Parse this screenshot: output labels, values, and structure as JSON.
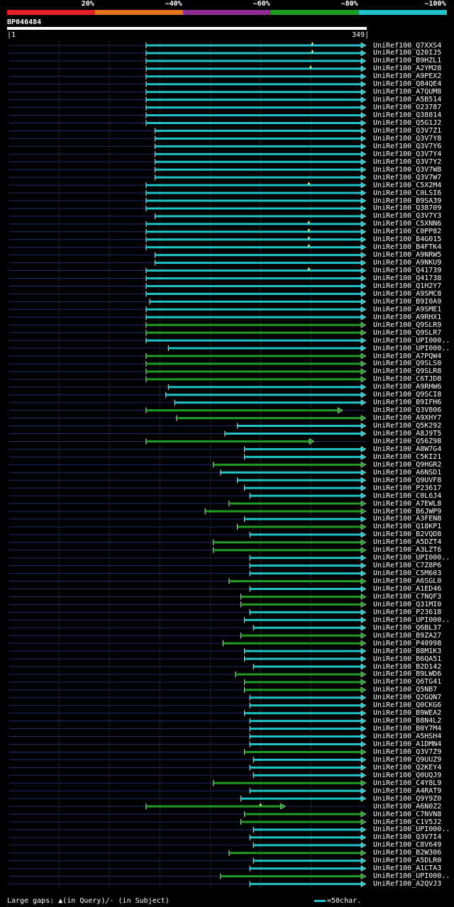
{
  "legend": {
    "percent_labels": [
      "20%",
      "~40%",
      "~60%",
      "~80%",
      "~100%"
    ],
    "colors": [
      "#e8222a",
      "#e8741e",
      "#8e2c92",
      "#1f9c22",
      "#1fc3c9"
    ]
  },
  "query": {
    "id": "BP046484",
    "start": "1",
    "end": "349"
  },
  "colors": {
    "cyan": "#1fc3c9",
    "green": "#1f9c22",
    "background": "#000000",
    "grid": "#5a5a5a",
    "gap_line": "#1e2a6e",
    "marker": "#ffff80"
  },
  "hits": [
    {
      "label": "UniRef100_Q7XXS4",
      "start": 0.385,
      "color": "cyan",
      "arrow": "right",
      "marker": 0.85
    },
    {
      "label": "UniRef100_Q20IJ5",
      "start": 0.385,
      "color": "cyan",
      "arrow": "right",
      "marker": 0.85
    },
    {
      "label": "UniRef100_B9HZL1",
      "start": 0.385,
      "color": "cyan",
      "arrow": "right",
      "marker": null
    },
    {
      "label": "UniRef100_A2YM28",
      "start": 0.385,
      "color": "cyan",
      "arrow": "right",
      "marker": 0.845
    },
    {
      "label": "UniRef100_A9PEX2",
      "start": 0.385,
      "color": "cyan",
      "arrow": "right",
      "marker": null
    },
    {
      "label": "UniRef100_Q84QE4",
      "start": 0.385,
      "color": "cyan",
      "arrow": "right",
      "marker": null
    },
    {
      "label": "UniRef100_A7QUM8",
      "start": 0.385,
      "color": "cyan",
      "arrow": "right",
      "marker": null
    },
    {
      "label": "UniRef100_A5B514",
      "start": 0.385,
      "color": "cyan",
      "arrow": "right",
      "marker": null
    },
    {
      "label": "UniRef100_O23787",
      "start": 0.385,
      "color": "cyan",
      "arrow": "right",
      "marker": null
    },
    {
      "label": "UniRef100_Q38814",
      "start": 0.385,
      "color": "cyan",
      "arrow": "right",
      "marker": null
    },
    {
      "label": "UniRef100_Q5G1J2",
      "start": 0.385,
      "color": "cyan",
      "arrow": "right",
      "marker": null
    },
    {
      "label": "UniRef100_Q3V7Z1",
      "start": 0.41,
      "color": "cyan",
      "arrow": "right",
      "marker": null
    },
    {
      "label": "UniRef100_Q3V7Y8",
      "start": 0.41,
      "color": "cyan",
      "arrow": "right",
      "marker": null
    },
    {
      "label": "UniRef100_Q3V7Y6",
      "start": 0.41,
      "color": "cyan",
      "arrow": "right",
      "marker": null
    },
    {
      "label": "UniRef100_Q3V7Y4",
      "start": 0.41,
      "color": "cyan",
      "arrow": "right",
      "marker": null
    },
    {
      "label": "UniRef100_Q3V7Y2",
      "start": 0.41,
      "color": "cyan",
      "arrow": "right",
      "marker": null
    },
    {
      "label": "UniRef100_Q3V7W8",
      "start": 0.41,
      "color": "cyan",
      "arrow": "right",
      "marker": null
    },
    {
      "label": "UniRef100_Q3V7W7",
      "start": 0.41,
      "color": "cyan",
      "arrow": "right",
      "marker": null
    },
    {
      "label": "UniRef100_C5X2M4",
      "start": 0.385,
      "color": "cyan",
      "arrow": "right",
      "marker": 0.84
    },
    {
      "label": "UniRef100_C0LSI6",
      "start": 0.385,
      "color": "cyan",
      "arrow": "right",
      "marker": null
    },
    {
      "label": "UniRef100_B9SA39",
      "start": 0.385,
      "color": "cyan",
      "arrow": "right",
      "marker": null
    },
    {
      "label": "UniRef100_Q38709",
      "start": 0.385,
      "color": "cyan",
      "arrow": "right",
      "marker": null
    },
    {
      "label": "UniRef100_Q3V7Y3",
      "start": 0.41,
      "color": "cyan",
      "arrow": "right",
      "marker": null
    },
    {
      "label": "UniRef100_C5XNN6",
      "start": 0.385,
      "color": "cyan",
      "arrow": "right",
      "marker": 0.84
    },
    {
      "label": "UniRef100_C0PP82",
      "start": 0.385,
      "color": "cyan",
      "arrow": "right",
      "marker": 0.84
    },
    {
      "label": "UniRef100_B4G015",
      "start": 0.385,
      "color": "cyan",
      "arrow": "right",
      "marker": 0.84
    },
    {
      "label": "UniRef100_B4FTK4",
      "start": 0.385,
      "color": "cyan",
      "arrow": "right",
      "marker": 0.84
    },
    {
      "label": "UniRef100_A9NRW5",
      "start": 0.41,
      "color": "cyan",
      "arrow": "right",
      "marker": null
    },
    {
      "label": "UniRef100_A9NKU9",
      "start": 0.41,
      "color": "cyan",
      "arrow": "right",
      "marker": null
    },
    {
      "label": "UniRef100_Q41739",
      "start": 0.385,
      "color": "cyan",
      "arrow": "right",
      "marker": 0.84
    },
    {
      "label": "UniRef100_Q41738",
      "start": 0.385,
      "color": "cyan",
      "arrow": "right",
      "marker": null
    },
    {
      "label": "UniRef100_Q1H2Y7",
      "start": 0.385,
      "color": "cyan",
      "arrow": "right",
      "marker": null
    },
    {
      "label": "UniRef100_A9SMC8",
      "start": 0.385,
      "color": "cyan",
      "arrow": "right",
      "marker": null
    },
    {
      "label": "UniRef100_B9I0A9",
      "start": 0.395,
      "color": "cyan",
      "arrow": "right",
      "marker": null
    },
    {
      "label": "UniRef100_A9SME1",
      "start": 0.385,
      "color": "cyan",
      "arrow": "right",
      "marker": null
    },
    {
      "label": "UniRef100_A9RHX1",
      "start": 0.385,
      "color": "cyan",
      "arrow": "right",
      "marker": null
    },
    {
      "label": "UniRef100_Q9SLR9",
      "start": 0.385,
      "color": "green",
      "arrow": "right",
      "marker": null
    },
    {
      "label": "UniRef100_Q9SLR7",
      "start": 0.385,
      "color": "green",
      "arrow": "right",
      "marker": null
    },
    {
      "label": "UniRef100_UPI000..",
      "start": 0.385,
      "color": "cyan",
      "arrow": "right",
      "marker": null
    },
    {
      "label": "UniRef100_UPI000..",
      "start": 0.447,
      "color": "cyan",
      "arrow": "right",
      "marker": null
    },
    {
      "label": "UniRef100_A7PQW4",
      "start": 0.385,
      "color": "green",
      "arrow": "right",
      "marker": null
    },
    {
      "label": "UniRef100_Q9SLS0",
      "start": 0.385,
      "color": "green",
      "arrow": "right",
      "marker": null
    },
    {
      "label": "UniRef100_Q9SLR8",
      "start": 0.385,
      "color": "green",
      "arrow": "right",
      "marker": null
    },
    {
      "label": "UniRef100_C6TJD8",
      "start": 0.385,
      "color": "green",
      "arrow": "right",
      "marker": null
    },
    {
      "label": "UniRef100_A9RHW6",
      "start": 0.447,
      "color": "cyan",
      "arrow": "right",
      "marker": null
    },
    {
      "label": "UniRef100_Q9SCI8",
      "start": 0.44,
      "color": "cyan",
      "arrow": "right",
      "marker": null
    },
    {
      "label": "UniRef100_B9IFH6",
      "start": 0.465,
      "color": "cyan",
      "arrow": "right",
      "marker": null
    },
    {
      "label": "UniRef100_Q3V806",
      "start": 0.385,
      "color": "green",
      "arrow": "mid-0.935",
      "marker": null
    },
    {
      "label": "UniRef100_A9XHY7",
      "start": 0.47,
      "color": "green",
      "arrow": "right",
      "marker": null
    },
    {
      "label": "UniRef100_Q5K292",
      "start": 0.64,
      "color": "cyan",
      "arrow": "right",
      "marker": null
    },
    {
      "label": "UniRef100_A8J9T5",
      "start": 0.605,
      "color": "cyan",
      "arrow": "right",
      "marker": null
    },
    {
      "label": "UniRef100_Q56Z98",
      "start": 0.385,
      "color": "green",
      "arrow": "mid-0.855",
      "marker": null
    },
    {
      "label": "UniRef100_A8W7G4",
      "start": 0.66,
      "color": "cyan",
      "arrow": "right",
      "marker": null
    },
    {
      "label": "UniRef100_C5KI21",
      "start": 0.66,
      "color": "cyan",
      "arrow": "right",
      "marker": null
    },
    {
      "label": "UniRef100_Q9HGR2",
      "start": 0.573,
      "color": "green",
      "arrow": "right",
      "marker": null
    },
    {
      "label": "UniRef100_A6NSD1",
      "start": 0.593,
      "color": "cyan",
      "arrow": "right",
      "marker": null
    },
    {
      "label": "UniRef100_Q9UVF8",
      "start": 0.64,
      "color": "cyan",
      "arrow": "right",
      "marker": null
    },
    {
      "label": "UniRef100_P23617",
      "start": 0.66,
      "color": "cyan",
      "arrow": "right",
      "marker": null
    },
    {
      "label": "UniRef100_C0L6J4",
      "start": 0.675,
      "color": "cyan",
      "arrow": "right",
      "marker": null
    },
    {
      "label": "UniRef100_A7EWL8",
      "start": 0.617,
      "color": "green",
      "arrow": "right",
      "marker": null
    },
    {
      "label": "UniRef100_B6JWP9",
      "start": 0.55,
      "color": "green",
      "arrow": "right",
      "marker": null
    },
    {
      "label": "UniRef100_A3FEN8",
      "start": 0.66,
      "color": "cyan",
      "arrow": "right",
      "marker": null
    },
    {
      "label": "UniRef100_Q18KP1",
      "start": 0.64,
      "color": "green",
      "arrow": "right",
      "marker": null
    },
    {
      "label": "UniRef100_B2VQD8",
      "start": 0.675,
      "color": "cyan",
      "arrow": "right",
      "marker": null
    },
    {
      "label": "UniRef100_A5DZT4",
      "start": 0.573,
      "color": "green",
      "arrow": "right",
      "marker": null
    },
    {
      "label": "UniRef100_A3LZT6",
      "start": 0.573,
      "color": "green",
      "arrow": "right",
      "marker": null
    },
    {
      "label": "UniRef100_UPI000..",
      "start": 0.675,
      "color": "cyan",
      "arrow": "right",
      "marker": null
    },
    {
      "label": "UniRef100_C7Z8P6",
      "start": 0.675,
      "color": "cyan",
      "arrow": "right",
      "marker": null
    },
    {
      "label": "UniRef100_C5M603",
      "start": 0.675,
      "color": "cyan",
      "arrow": "right",
      "marker": null
    },
    {
      "label": "UniRef100_A6SGL0",
      "start": 0.617,
      "color": "green",
      "arrow": "right",
      "marker": null
    },
    {
      "label": "UniRef100_A1ED46",
      "start": 0.675,
      "color": "cyan",
      "arrow": "right",
      "marker": null
    },
    {
      "label": "UniRef100_C7NQF3",
      "start": 0.65,
      "color": "green",
      "arrow": "right",
      "marker": null
    },
    {
      "label": "UniRef100_Q31MI0",
      "start": 0.65,
      "color": "green",
      "arrow": "right",
      "marker": null
    },
    {
      "label": "UniRef100_P23618",
      "start": 0.675,
      "color": "cyan",
      "arrow": "right",
      "marker": null
    },
    {
      "label": "UniRef100_UPI000..",
      "start": 0.66,
      "color": "cyan",
      "arrow": "right",
      "marker": null
    },
    {
      "label": "UniRef100_Q6BL37",
      "start": 0.685,
      "color": "cyan",
      "arrow": "right",
      "marker": null
    },
    {
      "label": "UniRef100_B9ZA27",
      "start": 0.65,
      "color": "green",
      "arrow": "right",
      "marker": null
    },
    {
      "label": "UniRef100_P40998",
      "start": 0.6,
      "color": "green",
      "arrow": "right",
      "marker": null
    },
    {
      "label": "UniRef100_B8M1K3",
      "start": 0.66,
      "color": "cyan",
      "arrow": "right",
      "marker": null
    },
    {
      "label": "UniRef100_B6QA51",
      "start": 0.66,
      "color": "cyan",
      "arrow": "right",
      "marker": null
    },
    {
      "label": "UniRef100_B2D142",
      "start": 0.685,
      "color": "cyan",
      "arrow": "right",
      "marker": null
    },
    {
      "label": "UniRef100_B9LWD6",
      "start": 0.635,
      "color": "green",
      "arrow": "right",
      "marker": null
    },
    {
      "label": "UniRef100_Q6TG41",
      "start": 0.66,
      "color": "green",
      "arrow": "right",
      "marker": null
    },
    {
      "label": "UniRef100_Q5NB7",
      "start": 0.66,
      "color": "green",
      "arrow": "right",
      "marker": null
    },
    {
      "label": "UniRef100_Q2GQN7",
      "start": 0.675,
      "color": "cyan",
      "arrow": "right",
      "marker": null
    },
    {
      "label": "UniRef100_Q0CKG6",
      "start": 0.675,
      "color": "cyan",
      "arrow": "right",
      "marker": null
    },
    {
      "label": "UniRef100_B9WEA2",
      "start": 0.66,
      "color": "cyan",
      "arrow": "right",
      "marker": null
    },
    {
      "label": "UniRef100_B8N4L2",
      "start": 0.675,
      "color": "cyan",
      "arrow": "right",
      "marker": null
    },
    {
      "label": "UniRef100_B0Y7M4",
      "start": 0.675,
      "color": "cyan",
      "arrow": "right",
      "marker": null
    },
    {
      "label": "UniRef100_A5HSH4",
      "start": 0.675,
      "color": "cyan",
      "arrow": "right",
      "marker": null
    },
    {
      "label": "UniRef100_A1DMN4",
      "start": 0.675,
      "color": "cyan",
      "arrow": "right",
      "marker": null
    },
    {
      "label": "UniRef100_Q3V7Z9",
      "start": 0.66,
      "color": "green",
      "arrow": "right",
      "marker": null
    },
    {
      "label": "UniRef100_Q9UUZ9",
      "start": 0.685,
      "color": "cyan",
      "arrow": "right",
      "marker": null
    },
    {
      "label": "UniRef100_Q2KEY4",
      "start": 0.675,
      "color": "cyan",
      "arrow": "right",
      "marker": null
    },
    {
      "label": "UniRef100_Q0UQJ9",
      "start": 0.685,
      "color": "cyan",
      "arrow": "right",
      "marker": null
    },
    {
      "label": "UniRef100_C4Y8L9",
      "start": 0.573,
      "color": "green",
      "arrow": "right",
      "marker": null
    },
    {
      "label": "UniRef100_A4RAT9",
      "start": 0.675,
      "color": "cyan",
      "arrow": "right",
      "marker": null
    },
    {
      "label": "UniRef100_Q9Y9Z0",
      "start": 0.65,
      "color": "cyan",
      "arrow": "right",
      "marker": null
    },
    {
      "label": "UniRef100_A6N0Z2",
      "start": 0.385,
      "color": "green",
      "arrow": "mid-0.775",
      "marker": 0.705
    },
    {
      "label": "UniRef100_C7NVN8",
      "start": 0.66,
      "color": "green",
      "arrow": "right",
      "marker": null
    },
    {
      "label": "UniRef100_C1V5J2",
      "start": 0.65,
      "color": "green",
      "arrow": "right",
      "marker": null
    },
    {
      "label": "UniRef100_UPI000..",
      "start": 0.685,
      "color": "cyan",
      "arrow": "right",
      "marker": null
    },
    {
      "label": "UniRef100_Q3V7I4",
      "start": 0.675,
      "color": "cyan",
      "arrow": "right",
      "marker": null
    },
    {
      "label": "UniRef100_C8V649",
      "start": 0.685,
      "color": "cyan",
      "arrow": "right",
      "marker": null
    },
    {
      "label": "UniRef100_B2W306",
      "start": 0.617,
      "color": "green",
      "arrow": "right",
      "marker": null
    },
    {
      "label": "UniRef100_A5DLR0",
      "start": 0.685,
      "color": "cyan",
      "arrow": "right",
      "marker": null
    },
    {
      "label": "UniRef100_A1CTA3",
      "start": 0.675,
      "color": "cyan",
      "arrow": "right",
      "marker": null
    },
    {
      "label": "UniRef100_UPI000..",
      "start": 0.593,
      "color": "green",
      "arrow": "right",
      "marker": null
    },
    {
      "label": "UniRef100_A2QVJ3",
      "start": 0.675,
      "color": "cyan",
      "arrow": "right",
      "marker": null
    }
  ],
  "footer": {
    "gaps_text": "Large gaps: ▲(in Query)/- (in Subject)",
    "scale_text": "=50char."
  }
}
